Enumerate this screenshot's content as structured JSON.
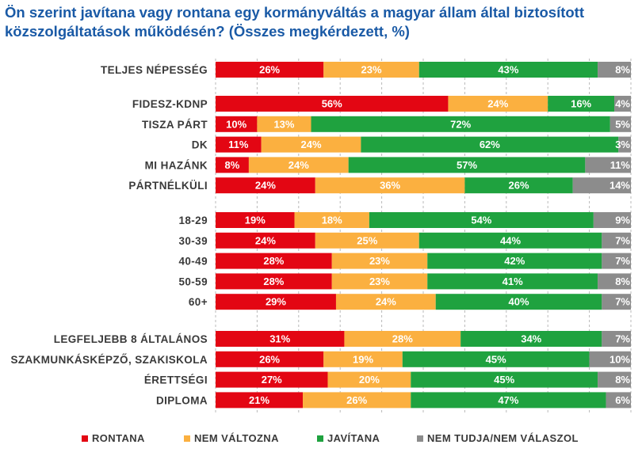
{
  "title": "Ön szerint javítana vagy rontana egy kormányváltás a magyar állam által biztosított közszolgáltatások működésén? (Összes megkérdezett, %)",
  "colors": {
    "rontana": "#e30613",
    "nem_valtozna": "#fbb040",
    "javitana": "#1fa23f",
    "nem_tudja": "#8c8c8c",
    "title": "#1a5aa6",
    "grid": "#b8b8b8"
  },
  "chart_data": {
    "type": "bar",
    "orientation": "horizontal",
    "stacked": true,
    "normalized": true,
    "unit": "%",
    "legend_position": "bottom",
    "grid": true,
    "categories": [
      "TELJES NÉPESSÉG",
      "FIDESZ-KDNP",
      "TISZA PÁRT",
      "DK",
      "MI HAZÁNK",
      "PÁRTNÉLKÜLI",
      "18-29",
      "30-39",
      "40-49",
      "50-59",
      "60+",
      "LEGFELJEBB 8 ÁLTALÁNOS",
      "SZAKMUNKÁSKÉPZŐ, SZAKISKOLA",
      "ÉRETTSÉGI",
      "DIPLOMA"
    ],
    "groups": [
      [
        0
      ],
      [
        1,
        2,
        3,
        4,
        5
      ],
      [
        6,
        7,
        8,
        9,
        10
      ],
      [
        11,
        12,
        13,
        14
      ]
    ],
    "series": [
      {
        "name": "RONTANA",
        "color_key": "rontana",
        "values": [
          26,
          56,
          10,
          11,
          8,
          24,
          19,
          24,
          28,
          28,
          29,
          31,
          26,
          27,
          21
        ]
      },
      {
        "name": "NEM VÁLTOZNA",
        "color_key": "nem_valtozna",
        "values": [
          23,
          24,
          13,
          24,
          24,
          36,
          18,
          25,
          23,
          23,
          24,
          28,
          19,
          20,
          26
        ]
      },
      {
        "name": "JAVÍTANA",
        "color_key": "javitana",
        "values": [
          43,
          16,
          72,
          62,
          57,
          26,
          54,
          44,
          42,
          41,
          40,
          34,
          45,
          45,
          47
        ]
      },
      {
        "name": "NEM TUDJA/NEM VÁLASZOL",
        "color_key": "nem_tudja",
        "values": [
          8,
          4,
          5,
          3,
          11,
          14,
          9,
          7,
          7,
          8,
          7,
          7,
          10,
          8,
          6
        ]
      }
    ]
  }
}
